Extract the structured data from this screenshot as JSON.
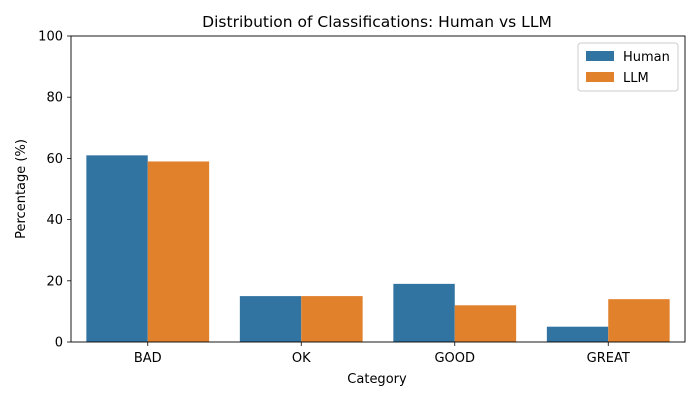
{
  "chart_data": {
    "type": "bar",
    "title": "Distribution of Classifications: Human vs LLM",
    "xlabel": "Category",
    "ylabel": "Percentage (%)",
    "categories": [
      "BAD",
      "OK",
      "GOOD",
      "GREAT"
    ],
    "series": [
      {
        "name": "Human",
        "values": [
          61,
          15,
          19,
          5
        ],
        "color": "#3274a1"
      },
      {
        "name": "LLM",
        "values": [
          59,
          15,
          12,
          14
        ],
        "color": "#e1812c"
      }
    ],
    "ylim": [
      0,
      100
    ],
    "yticks": [
      0,
      20,
      40,
      60,
      80,
      100
    ],
    "grid": false,
    "legend_position": "top-right"
  }
}
